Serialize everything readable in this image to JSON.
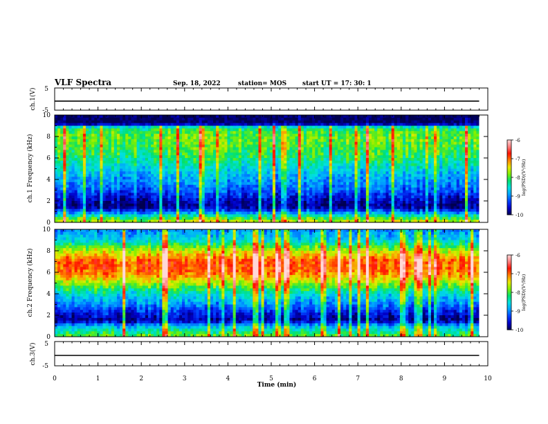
{
  "header": {
    "title": "VLF Spectra",
    "date": "Sep. 18, 2022",
    "station": "station= MOS",
    "start_ut": "start  UT =   17: 30: 1"
  },
  "colors": {
    "cmap": [
      "#000050",
      "#0000c8",
      "#0040ff",
      "#00a0ff",
      "#00e0e0",
      "#00e070",
      "#80f000",
      "#e8e800",
      "#ff8000",
      "#ff1000",
      "#ff8080",
      "#ffd8d8"
    ],
    "trace": "#000000"
  },
  "chart_data": [
    {
      "type": "line",
      "panel": "ch1-waveform",
      "ylabel": "ch.1(V)",
      "ylim": [
        -5,
        5
      ],
      "yticks": [
        "5",
        "-5"
      ],
      "series": [
        {
          "values": [
            -0.9,
            -0.9,
            -0.9,
            -0.9,
            -0.9,
            -0.9,
            -0.9,
            -0.9,
            -0.9,
            -0.9,
            -0.9
          ]
        }
      ],
      "x": [
        0,
        1,
        2,
        3,
        4,
        5,
        6,
        7,
        8,
        9,
        9.8
      ]
    },
    {
      "type": "heatmap",
      "panel": "ch1-spectrogram",
      "ylabel": "ch.1\nFrequency (kHz)",
      "ylim": [
        0,
        10
      ],
      "yticks": [
        "0",
        "2",
        "4",
        "6",
        "8",
        "10"
      ],
      "xlim": [
        0,
        10
      ],
      "colorbar": {
        "label": "log(PSD)(V²/Hz)",
        "range": [
          -10,
          -6
        ],
        "ticks": [
          "-6",
          "-7",
          "-8",
          "-9",
          "-10"
        ]
      },
      "freq_profile": [
        {
          "f": 0.0,
          "v": -7.5
        },
        {
          "f": 0.5,
          "v": -8.2
        },
        {
          "f": 1.0,
          "v": -9.2
        },
        {
          "f": 1.5,
          "v": -9.9
        },
        {
          "f": 2.0,
          "v": -9.7
        },
        {
          "f": 3.0,
          "v": -9.2
        },
        {
          "f": 4.0,
          "v": -8.9
        },
        {
          "f": 5.0,
          "v": -8.6
        },
        {
          "f": 6.0,
          "v": -8.2
        },
        {
          "f": 7.0,
          "v": -8.0
        },
        {
          "f": 8.0,
          "v": -7.9
        },
        {
          "f": 8.8,
          "v": -8.2
        },
        {
          "f": 9.2,
          "v": -10.0
        },
        {
          "f": 10.0,
          "v": -10.0
        }
      ]
    },
    {
      "type": "heatmap",
      "panel": "ch2-spectrogram",
      "ylabel": "ch.2\nFrequency (kHz)",
      "ylim": [
        0,
        10
      ],
      "yticks": [
        "0",
        "2",
        "4",
        "6",
        "8",
        "10"
      ],
      "xlim": [
        0,
        10
      ],
      "colorbar": {
        "label": "log(PSD)(V²/Hz)",
        "range": [
          -10,
          -6
        ],
        "ticks": [
          "-6",
          "-7",
          "-8",
          "-9",
          "-10"
        ]
      },
      "freq_profile": [
        {
          "f": 0.0,
          "v": -7.9
        },
        {
          "f": 0.5,
          "v": -8.3
        },
        {
          "f": 1.0,
          "v": -8.8
        },
        {
          "f": 1.5,
          "v": -9.8
        },
        {
          "f": 2.0,
          "v": -9.6
        },
        {
          "f": 3.0,
          "v": -9.0
        },
        {
          "f": 4.0,
          "v": -8.5
        },
        {
          "f": 5.0,
          "v": -7.7
        },
        {
          "f": 6.0,
          "v": -7.0
        },
        {
          "f": 7.0,
          "v": -6.9
        },
        {
          "f": 8.0,
          "v": -7.6
        },
        {
          "f": 9.0,
          "v": -8.6
        },
        {
          "f": 10.0,
          "v": -9.0
        }
      ]
    },
    {
      "type": "line",
      "panel": "ch3-waveform",
      "ylabel": "ch.3(V)",
      "ylim": [
        -5,
        5
      ],
      "yticks": [
        "5",
        "-5"
      ],
      "series": [
        {
          "values": [
            -0.7,
            -0.7,
            -0.7,
            -0.7,
            -0.7,
            -0.7,
            -0.7,
            -0.7,
            -0.7,
            -0.7,
            -0.7
          ]
        }
      ],
      "x": [
        0,
        1,
        2,
        3,
        4,
        5,
        6,
        7,
        8,
        9,
        9.8
      ]
    }
  ],
  "x_axis": {
    "label": "Time  (min)",
    "range": [
      0,
      10
    ],
    "ticks": [
      "0",
      "1",
      "2",
      "3",
      "4",
      "5",
      "6",
      "7",
      "8",
      "9",
      "10"
    ]
  }
}
